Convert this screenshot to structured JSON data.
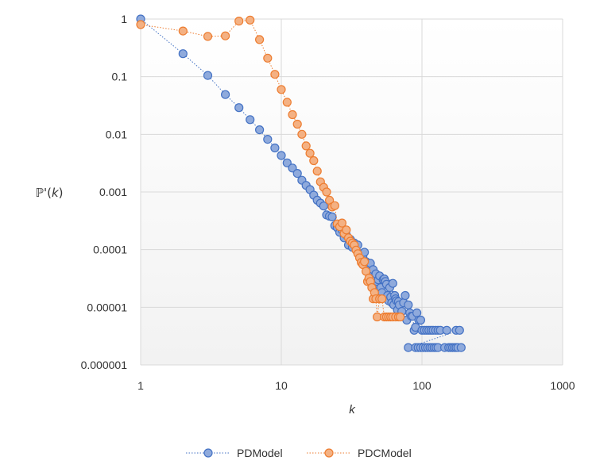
{
  "colors": {
    "series1": "#4472C4",
    "series1_fill": "#8FAADC",
    "series2": "#ED7D31",
    "series2_fill": "#F4B183",
    "grid": "#D9D9D9",
    "plot_bg_top": "#FFFFFF",
    "plot_bg_bottom": "#F2F2F2"
  },
  "chart_data": {
    "type": "scatter",
    "title": "",
    "xlabel": "k",
    "ylabel_prefix": "ℙ'(",
    "ylabel_var": "k",
    "ylabel_suffix": ")",
    "x_scale": "log",
    "y_scale": "log",
    "xlim": [
      1,
      1000
    ],
    "ylim": [
      1e-06,
      1
    ],
    "x_ticks": [
      {
        "value": 1,
        "label": "1"
      },
      {
        "value": 10,
        "label": "10"
      },
      {
        "value": 100,
        "label": "100"
      },
      {
        "value": 1000,
        "label": "1000"
      }
    ],
    "y_ticks": [
      {
        "value": 1,
        "label": "1"
      },
      {
        "value": 0.1,
        "label": "0.1"
      },
      {
        "value": 0.01,
        "label": "0.01"
      },
      {
        "value": 0.001,
        "label": "0.001"
      },
      {
        "value": 0.0001,
        "label": "0.0001"
      },
      {
        "value": 1e-05,
        "label": "0.00001"
      },
      {
        "value": 1e-06,
        "label": "0.000001"
      }
    ],
    "grid": true,
    "line_style": "dotted",
    "legend_position": "bottom",
    "series": [
      {
        "name": "PDModel",
        "points": [
          [
            1,
            1.0
          ],
          [
            2,
            0.25
          ],
          [
            3,
            0.105
          ],
          [
            4,
            0.049
          ],
          [
            5,
            0.029
          ],
          [
            6,
            0.018
          ],
          [
            7,
            0.012
          ],
          [
            8,
            0.0082
          ],
          [
            9,
            0.0058
          ],
          [
            10,
            0.0043
          ],
          [
            11,
            0.0032
          ],
          [
            12,
            0.0026
          ],
          [
            13,
            0.0021
          ],
          [
            14,
            0.0016
          ],
          [
            15,
            0.0013
          ],
          [
            16,
            0.0011
          ],
          [
            17,
            0.00088
          ],
          [
            18,
            0.00072
          ],
          [
            19,
            0.00064
          ],
          [
            20,
            0.00057
          ],
          [
            21,
            0.0004
          ],
          [
            22,
            0.00038
          ],
          [
            23,
            0.00037
          ],
          [
            24,
            0.00026
          ],
          [
            25,
            0.00024
          ],
          [
            26,
            0.0002
          ],
          [
            27,
            0.00022
          ],
          [
            28,
            0.00016
          ],
          [
            29,
            0.00018
          ],
          [
            30,
            0.00012
          ],
          [
            31,
            0.00015
          ],
          [
            32,
            0.00011
          ],
          [
            33,
            0.00013
          ],
          [
            34,
            0.0001
          ],
          [
            35,
            0.00012
          ],
          [
            36,
            8.5e-05
          ],
          [
            37,
            7e-05
          ],
          [
            38,
            7.5e-05
          ],
          [
            39,
            9e-05
          ],
          [
            40,
            6.2e-05
          ],
          [
            41,
            5.5e-05
          ],
          [
            42,
            5e-05
          ],
          [
            43,
            5.8e-05
          ],
          [
            44,
            4e-05
          ],
          [
            45,
            4.5e-05
          ],
          [
            46,
            2.5e-05
          ],
          [
            47,
            3.8e-05
          ],
          [
            48,
            2.8e-05
          ],
          [
            49,
            3e-05
          ],
          [
            50,
            3.5e-05
          ],
          [
            51,
            2.2e-05
          ],
          [
            52,
            1.8e-05
          ],
          [
            53,
            3e-05
          ],
          [
            54,
            3.1e-05
          ],
          [
            55,
            2.8e-05
          ],
          [
            56,
            2.5e-05
          ],
          [
            57,
            1.6e-05
          ],
          [
            58,
            1.3e-05
          ],
          [
            59,
            2.2e-05
          ],
          [
            60,
            1.5e-05
          ],
          [
            61,
            1.2e-05
          ],
          [
            62,
            2.6e-05
          ],
          [
            63,
            1.1e-05
          ],
          [
            64,
            1.6e-05
          ],
          [
            65,
            1.4e-05
          ],
          [
            66,
            1.3e-05
          ],
          [
            67,
            9e-06
          ],
          [
            68,
            1.25e-05
          ],
          [
            69,
            1.1e-05
          ],
          [
            70,
            7e-06
          ],
          [
            72,
            8.5e-06
          ],
          [
            74,
            1.2e-05
          ],
          [
            76,
            1.6e-05
          ],
          [
            78,
            6e-06
          ],
          [
            80,
            1.1e-05
          ],
          [
            82,
            8e-06
          ],
          [
            84,
            7e-06
          ],
          [
            86,
            7e-06
          ],
          [
            88,
            4e-06
          ],
          [
            90,
            4.5e-06
          ],
          [
            92,
            8e-06
          ],
          [
            95,
            6e-06
          ],
          [
            98,
            6e-06
          ],
          [
            100,
            4e-06
          ],
          [
            104,
            4e-06
          ],
          [
            108,
            4e-06
          ],
          [
            112,
            4e-06
          ],
          [
            116,
            4e-06
          ],
          [
            120,
            4e-06
          ],
          [
            125,
            4e-06
          ],
          [
            130,
            4e-06
          ],
          [
            135,
            4e-06
          ],
          [
            150,
            4e-06
          ],
          [
            175,
            4e-06
          ],
          [
            185,
            4e-06
          ],
          [
            80,
            2e-06
          ],
          [
            90,
            2e-06
          ],
          [
            94,
            2e-06
          ],
          [
            98,
            2e-06
          ],
          [
            102,
            2e-06
          ],
          [
            106,
            2e-06
          ],
          [
            110,
            2e-06
          ],
          [
            114,
            2e-06
          ],
          [
            118,
            2e-06
          ],
          [
            122,
            2e-06
          ],
          [
            126,
            2e-06
          ],
          [
            130,
            2e-06
          ],
          [
            145,
            2e-06
          ],
          [
            155,
            2e-06
          ],
          [
            160,
            2e-06
          ],
          [
            165,
            2e-06
          ],
          [
            170,
            2e-06
          ],
          [
            175,
            2e-06
          ],
          [
            180,
            2e-06
          ],
          [
            190,
            2e-06
          ]
        ]
      },
      {
        "name": "PDCModel",
        "points": [
          [
            1,
            0.8
          ],
          [
            2,
            0.62
          ],
          [
            3,
            0.5
          ],
          [
            4,
            0.51
          ],
          [
            5,
            0.92
          ],
          [
            6,
            0.96
          ],
          [
            7,
            0.44
          ],
          [
            8,
            0.21
          ],
          [
            9,
            0.11
          ],
          [
            10,
            0.06
          ],
          [
            11,
            0.036
          ],
          [
            12,
            0.022
          ],
          [
            13,
            0.015
          ],
          [
            14,
            0.01
          ],
          [
            15,
            0.0063
          ],
          [
            16,
            0.0047
          ],
          [
            17,
            0.0035
          ],
          [
            18,
            0.0023
          ],
          [
            19,
            0.0015
          ],
          [
            20,
            0.0012
          ],
          [
            21,
            0.001
          ],
          [
            22,
            0.00072
          ],
          [
            23,
            0.00055
          ],
          [
            24,
            0.00058
          ],
          [
            25,
            0.00028
          ],
          [
            26,
            0.00025
          ],
          [
            27,
            0.00029
          ],
          [
            28,
            0.00019
          ],
          [
            29,
            0.00022
          ],
          [
            30,
            0.00016
          ],
          [
            31,
            0.00014
          ],
          [
            32,
            0.00013
          ],
          [
            33,
            0.00012
          ],
          [
            34,
            9.8e-05
          ],
          [
            35,
            8.5e-05
          ],
          [
            36,
            7.2e-05
          ],
          [
            37,
            6e-05
          ],
          [
            38,
            5.5e-05
          ],
          [
            39,
            6.2e-05
          ],
          [
            40,
            4.2e-05
          ],
          [
            41,
            2.8e-05
          ],
          [
            42,
            3.2e-05
          ],
          [
            43,
            2.8e-05
          ],
          [
            44,
            2.2e-05
          ],
          [
            45,
            1.4e-05
          ],
          [
            46,
            1.8e-05
          ],
          [
            47,
            1.4e-05
          ],
          [
            48,
            6.8e-06
          ],
          [
            50,
            1.4e-05
          ],
          [
            52,
            1.4e-05
          ],
          [
            54,
            6.8e-06
          ],
          [
            56,
            6.8e-06
          ],
          [
            58,
            6.8e-06
          ],
          [
            60,
            6.8e-06
          ],
          [
            62,
            6.8e-06
          ],
          [
            65,
            6.8e-06
          ],
          [
            68,
            6.8e-06
          ],
          [
            70,
            6.8e-06
          ]
        ]
      }
    ]
  }
}
